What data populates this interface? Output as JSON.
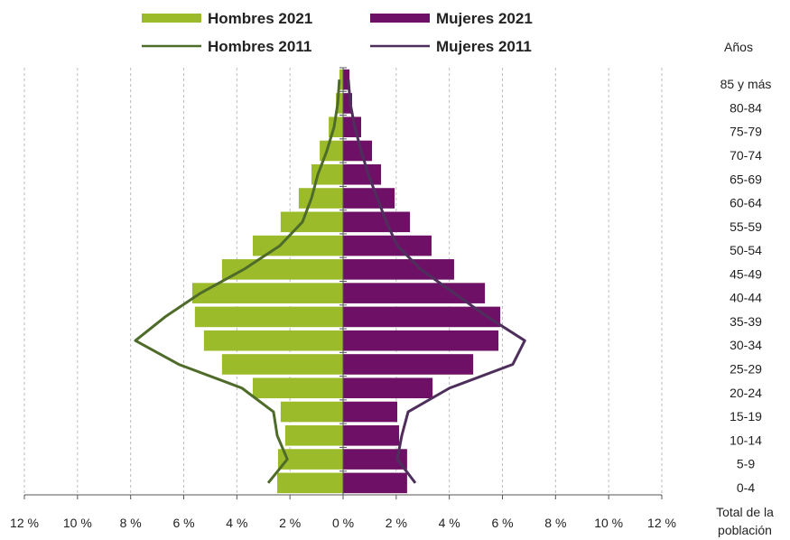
{
  "chart_data": {
    "type": "pyramid",
    "ylabel": "Años",
    "ylabel_bottom": [
      "Total de la",
      "población"
    ],
    "categories": [
      "0-4",
      "5-9",
      "10-14",
      "15-19",
      "20-24",
      "25-29",
      "30-34",
      "35-39",
      "40-44",
      "45-49",
      "50-54",
      "55-59",
      "60-64",
      "65-69",
      "70-74",
      "75-79",
      "80-84",
      "85 y más"
    ],
    "series": [
      {
        "name": "Hombres 2021",
        "kind": "bar",
        "color": "#9bbb2a",
        "values": [
          -2.48,
          -2.45,
          -2.18,
          -2.35,
          -3.4,
          -4.56,
          -5.24,
          -5.58,
          -5.68,
          -4.56,
          -3.4,
          -2.35,
          -1.67,
          -1.19,
          -0.88,
          -0.54,
          -0.27,
          -0.14
        ]
      },
      {
        "name": "Mujeres 2021",
        "kind": "bar",
        "color": "#6e1066",
        "values": [
          2.41,
          2.41,
          2.11,
          2.04,
          3.37,
          4.9,
          5.85,
          5.92,
          5.34,
          4.18,
          3.33,
          2.52,
          1.94,
          1.43,
          1.09,
          0.68,
          0.34,
          0.24
        ]
      },
      {
        "name": "Hombres 2011",
        "kind": "line",
        "color": "#4e6b2a",
        "values": [
          -2.82,
          -2.1,
          -2.48,
          -2.62,
          -3.81,
          -6.19,
          -7.82,
          -6.7,
          -5.37,
          -3.74,
          -2.38,
          -1.53,
          -1.19,
          -0.95,
          -0.61,
          -0.34,
          -0.2,
          -0.14
        ]
      },
      {
        "name": "Mujeres 2011",
        "kind": "line",
        "color": "#4e2f5c",
        "values": [
          2.72,
          2.04,
          2.21,
          2.45,
          4.01,
          6.39,
          6.84,
          5.44,
          4.18,
          2.93,
          2.04,
          1.63,
          1.29,
          0.95,
          0.68,
          0.44,
          0.27,
          0.2
        ]
      }
    ],
    "xlim": [
      -12,
      12
    ],
    "xticks": [
      {
        "value": -12,
        "label": "12 %"
      },
      {
        "value": -10,
        "label": "10 %"
      },
      {
        "value": -8,
        "label": "8 %"
      },
      {
        "value": -6,
        "label": "6 %"
      },
      {
        "value": -4,
        "label": "4 %"
      },
      {
        "value": -2,
        "label": "2 %"
      },
      {
        "value": 0,
        "label": "0 %"
      },
      {
        "value": 2,
        "label": "2 %"
      },
      {
        "value": 4,
        "label": "4 %"
      },
      {
        "value": 6,
        "label": "6 %"
      },
      {
        "value": 8,
        "label": "8 %"
      },
      {
        "value": 10,
        "label": "10 %"
      },
      {
        "value": 12,
        "label": "12 %"
      }
    ],
    "grid": true
  }
}
